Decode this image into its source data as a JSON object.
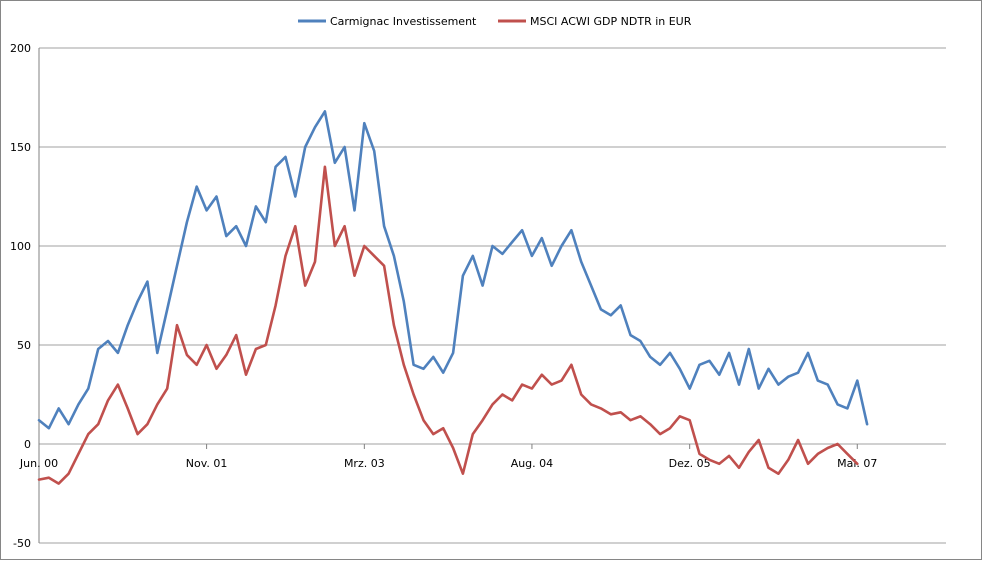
{
  "chart_data": {
    "type": "line",
    "title": "",
    "xlabel": "",
    "ylabel": "",
    "ylim": [
      -50,
      200
    ],
    "yticks": [
      -50,
      0,
      50,
      100,
      150,
      200
    ],
    "xtick_labels": [
      "Jun. 00",
      "Nov. 01",
      "Mrz. 03",
      "Aug. 04",
      "Dez. 05",
      "Mai. 07"
    ],
    "xtick_index": [
      0,
      17,
      33,
      50,
      66,
      83
    ],
    "xlim": [
      0,
      92
    ],
    "grid": true,
    "legend_position": "top",
    "series": [
      {
        "name": "Carmignac Investissement",
        "color": "#4F81BD",
        "values": [
          12,
          8,
          18,
          10,
          20,
          28,
          48,
          52,
          46,
          60,
          72,
          82,
          46,
          68,
          90,
          112,
          130,
          118,
          125,
          105,
          110,
          100,
          120,
          112,
          140,
          145,
          125,
          150,
          160,
          168,
          142,
          150,
          118,
          162,
          148,
          110,
          95,
          72,
          40,
          38,
          44,
          36,
          46,
          85,
          95,
          80,
          100,
          96,
          102,
          108,
          95,
          104,
          90,
          100,
          108,
          92,
          80,
          68,
          65,
          70,
          55,
          52,
          44,
          40,
          46,
          38,
          28,
          40,
          42,
          35,
          46,
          30,
          48,
          28,
          38,
          30,
          34,
          36,
          46,
          32,
          30,
          20,
          18,
          32,
          10
        ]
      },
      {
        "name": "MSCI ACWI GDP NDTR in EUR",
        "color": "#C0504D",
        "values": [
          -18,
          -17,
          -20,
          -15,
          -5,
          5,
          10,
          22,
          30,
          18,
          5,
          10,
          20,
          28,
          60,
          45,
          40,
          50,
          38,
          45,
          55,
          35,
          48,
          50,
          70,
          95,
          110,
          80,
          92,
          140,
          100,
          110,
          85,
          100,
          95,
          90,
          60,
          40,
          25,
          12,
          5,
          8,
          -2,
          -15,
          5,
          12,
          20,
          25,
          22,
          30,
          28,
          35,
          30,
          32,
          40,
          25,
          20,
          18,
          15,
          16,
          12,
          14,
          10,
          5,
          8,
          14,
          12,
          -5,
          -8,
          -10,
          -6,
          -12,
          -4,
          2,
          -12,
          -15,
          -8,
          2,
          -10,
          -5,
          -2,
          0,
          -5,
          -10
        ]
      }
    ]
  }
}
